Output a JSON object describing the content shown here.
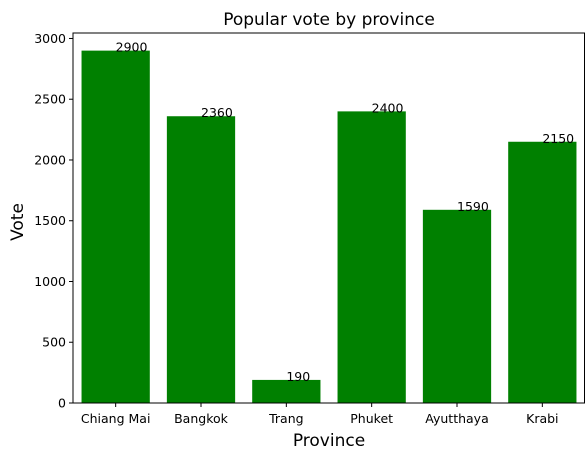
{
  "chart_data": {
    "type": "bar",
    "title": "Popular vote by province",
    "xlabel": "Province",
    "ylabel": "Vote",
    "categories": [
      "Chiang Mai",
      "Bangkok",
      "Trang",
      "Phuket",
      "Ayutthaya",
      "Krabi"
    ],
    "values": [
      2900,
      2360,
      190,
      2400,
      1590,
      2150
    ],
    "data_labels": [
      "2900",
      "2360",
      "190",
      "2400",
      "1590",
      "2150"
    ],
    "ylim": [
      0,
      3045
    ],
    "yticks": [
      0,
      500,
      1000,
      1500,
      2000,
      2500,
      3000
    ],
    "ytick_labels": [
      "0",
      "500",
      "1000",
      "1500",
      "2000",
      "2500",
      "3000"
    ],
    "bar_color": "#008000",
    "grid": false,
    "legend": "none"
  }
}
